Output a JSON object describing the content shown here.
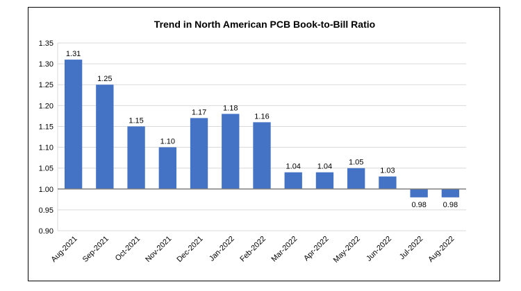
{
  "chart_data": {
    "type": "bar",
    "title": "Trend in North American PCB Book-to-Bill Ratio",
    "xlabel": "",
    "ylabel": "",
    "categories": [
      "Aug-2021",
      "Sep-2021",
      "Oct-2021",
      "Nov-2021",
      "Dec-2021",
      "Jan-2022",
      "Feb-2022",
      "Mar-2022",
      "Apr-2022",
      "May-2022",
      "Jun-2022",
      "Jul-2022",
      "Aug-2022"
    ],
    "values": [
      1.31,
      1.25,
      1.15,
      1.1,
      1.17,
      1.18,
      1.16,
      1.04,
      1.04,
      1.05,
      1.03,
      0.98,
      0.98
    ],
    "data_labels": [
      "1.31",
      "1.25",
      "1.15",
      "1.10",
      "1.17",
      "1.18",
      "1.16",
      "1.04",
      "1.04",
      "1.05",
      "1.03",
      "0.98",
      "0.98"
    ],
    "ylim": [
      0.9,
      1.35
    ],
    "yticks": [
      "1.35",
      "1.30",
      "1.25",
      "1.20",
      "1.15",
      "1.10",
      "1.05",
      "1.00",
      "0.95",
      "0.90"
    ],
    "baseline": 1.0,
    "grid": true,
    "bar_color": "#4472C4",
    "grid_color": "#d9d9d9",
    "axis_color": "#808080"
  }
}
